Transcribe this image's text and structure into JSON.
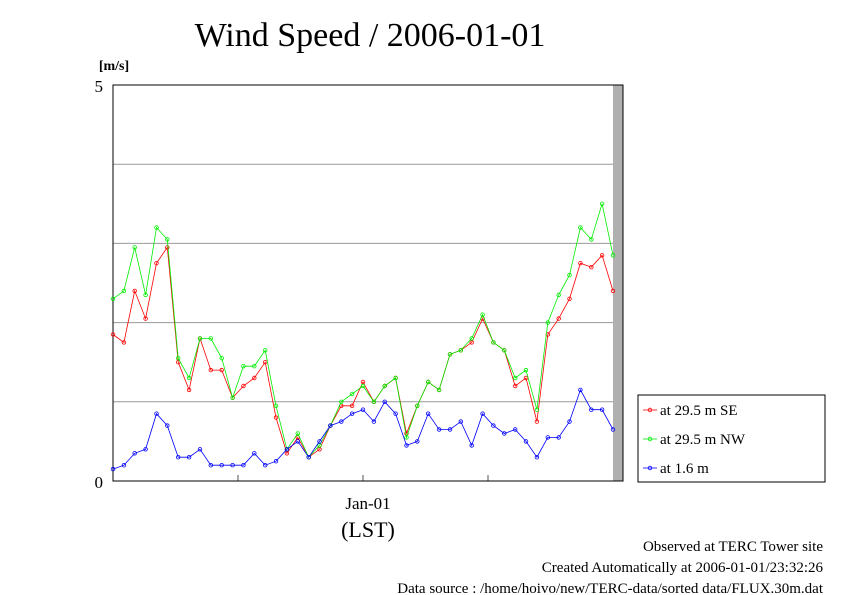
{
  "chart_data": {
    "type": "line",
    "title": "Wind Speed / 2006-01-01",
    "ylabel": "[m/s]",
    "xlabel": "(LST)",
    "xtick_label": "Jan-01",
    "ylim": [
      0,
      5
    ],
    "ytick_labels": [
      "0",
      "5"
    ],
    "grid": true,
    "legend_position": "right",
    "series": [
      {
        "name": "at 29.5 m SE",
        "color": "#ff0000",
        "values": [
          1.85,
          1.75,
          2.4,
          2.05,
          2.75,
          2.95,
          1.5,
          1.15,
          1.8,
          1.4,
          1.4,
          1.05,
          1.2,
          1.3,
          1.5,
          0.8,
          0.35,
          0.55,
          0.3,
          0.4,
          0.7,
          0.95,
          0.95,
          1.25,
          1.0,
          1.2,
          1.3,
          0.6,
          0.95,
          1.25,
          1.15,
          1.6,
          1.65,
          1.75,
          2.05,
          1.75,
          1.65,
          1.2,
          1.3,
          0.75,
          1.85,
          2.05,
          2.3,
          2.75,
          2.7,
          2.85,
          2.4
        ]
      },
      {
        "name": "at 29.5 m NW",
        "color": "#00ee00",
        "values": [
          2.3,
          2.4,
          2.95,
          2.35,
          3.2,
          3.05,
          1.55,
          1.3,
          1.8,
          1.8,
          1.55,
          1.05,
          1.45,
          1.45,
          1.65,
          0.95,
          0.4,
          0.6,
          0.3,
          0.45,
          0.7,
          1.0,
          1.1,
          1.2,
          1.0,
          1.2,
          1.3,
          0.55,
          0.95,
          1.25,
          1.15,
          1.6,
          1.65,
          1.8,
          2.1,
          1.75,
          1.65,
          1.3,
          1.4,
          0.9,
          2.0,
          2.35,
          2.6,
          3.2,
          3.05,
          3.5,
          2.85
        ]
      },
      {
        "name": "at 1.6 m",
        "color": "#0000ff",
        "values": [
          0.15,
          0.2,
          0.35,
          0.4,
          0.85,
          0.7,
          0.3,
          0.3,
          0.4,
          0.2,
          0.2,
          0.2,
          0.2,
          0.35,
          0.2,
          0.25,
          0.4,
          0.5,
          0.3,
          0.5,
          0.7,
          0.75,
          0.85,
          0.9,
          0.75,
          1.0,
          0.85,
          0.45,
          0.5,
          0.85,
          0.65,
          0.65,
          0.75,
          0.45,
          0.85,
          0.7,
          0.6,
          0.65,
          0.5,
          0.3,
          0.55,
          0.55,
          0.75,
          1.15,
          0.9,
          0.9,
          0.65
        ]
      }
    ]
  },
  "footer": {
    "line1": "Observed at TERC Tower site",
    "line2": "Created Automatically at 2006-01-01/23:32:26",
    "line3": "Data source : /home/hoivo/new/TERC-data/sorted  data/FLUX.30m.dat"
  }
}
